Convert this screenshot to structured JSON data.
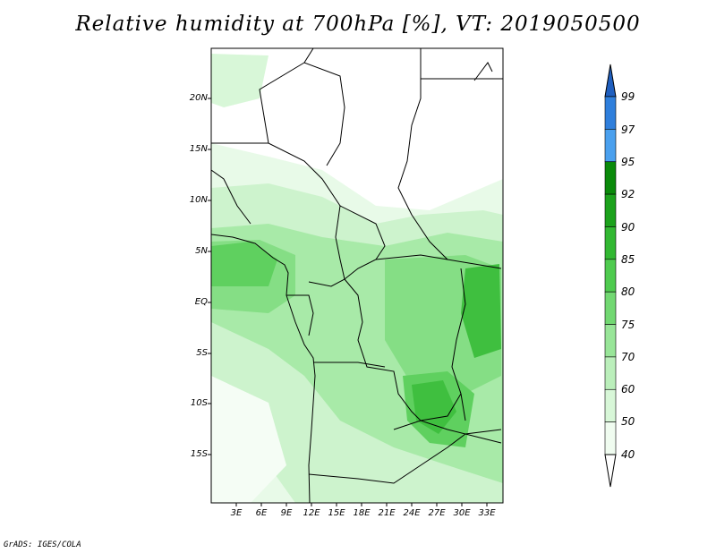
{
  "title": "Relative humidity at 700hPa [%], VT: 2019050500",
  "credit": "GrADS: IGES/COLA",
  "lat_labels": [
    "20N",
    "15N",
    "10N",
    "5N",
    "EQ",
    "5S",
    "10S",
    "15S"
  ],
  "lon_labels": [
    "3E",
    "6E",
    "9E",
    "12E",
    "15E",
    "18E",
    "21E",
    "24E",
    "27E",
    "30E",
    "33E"
  ],
  "colorbar": {
    "levels": [
      "99",
      "97",
      "95",
      "92",
      "90",
      "85",
      "80",
      "75",
      "70",
      "60",
      "50",
      "40"
    ],
    "colors": [
      "#1f5fbf",
      "#2f7fdc",
      "#4aa0ee",
      "#0a8a0a",
      "#1ca21c",
      "#32b832",
      "#4fcb4f",
      "#72d872",
      "#98e598",
      "#bbefbb",
      "#d8f7d8",
      "#f0fcf0"
    ]
  }
}
